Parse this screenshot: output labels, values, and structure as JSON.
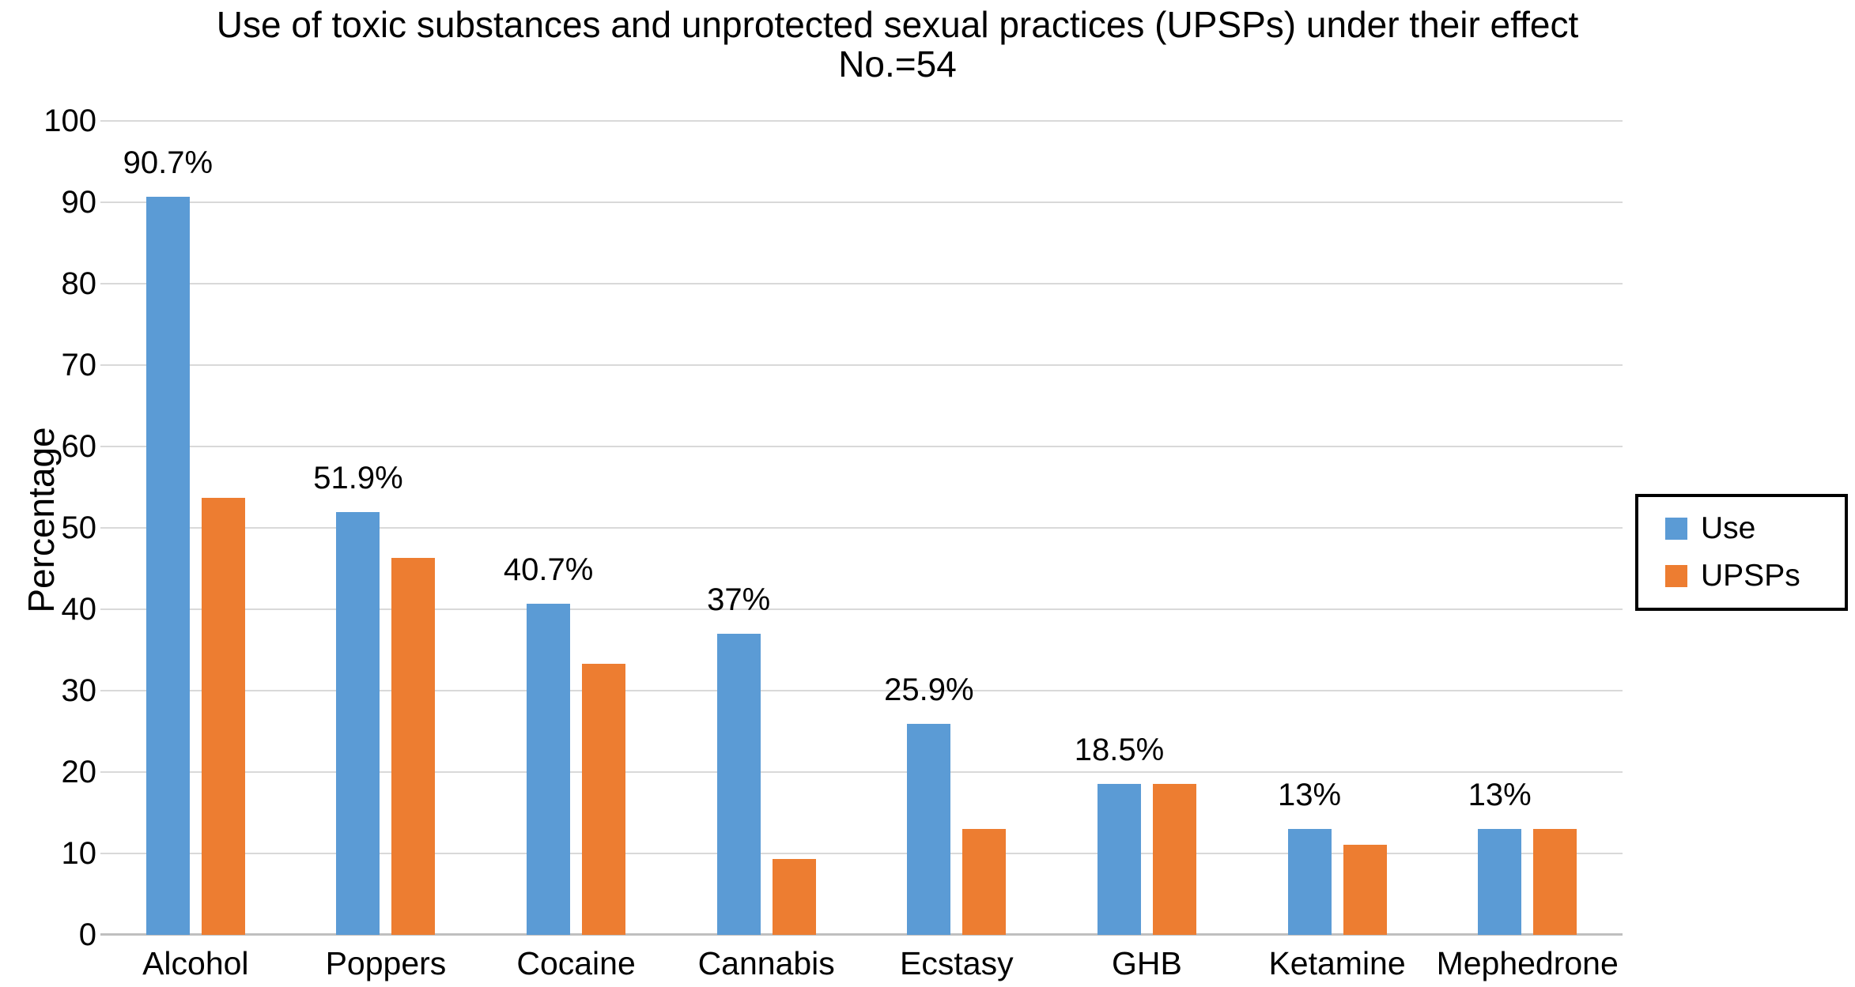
{
  "chart_data": {
    "type": "bar",
    "title_line1": "Use of toxic substances and unprotected sexual practices (UPSPs) under their effect",
    "title_line2": "No.=54",
    "y_axis_title": "Percentage",
    "categories": [
      "Alcohol",
      "Poppers",
      "Cocaine",
      "Cannabis",
      "Ecstasy",
      "GHB",
      "Ketamine",
      "Mephedrone"
    ],
    "series": [
      {
        "name": "Use",
        "color": "#5B9BD5",
        "values": [
          90.7,
          51.9,
          40.7,
          37,
          25.9,
          18.5,
          13,
          13
        ],
        "labels": [
          "90.7%",
          "51.9%",
          "40.7%",
          "37%",
          "25.9%",
          "18.5%",
          "13%",
          "13%"
        ]
      },
      {
        "name": "UPSPs",
        "color": "#ED7D31",
        "values": [
          53.7,
          46.3,
          33.3,
          9.3,
          13,
          18.5,
          11.1,
          13
        ],
        "labels": []
      }
    ],
    "ylim": [
      0,
      100
    ],
    "y_ticks": [
      0,
      10,
      20,
      30,
      40,
      50,
      60,
      70,
      80,
      90,
      100
    ],
    "grid": true,
    "grid_color": "#d9d9d9",
    "baseline_color": "#bfbfbf",
    "legend_position": "right"
  }
}
